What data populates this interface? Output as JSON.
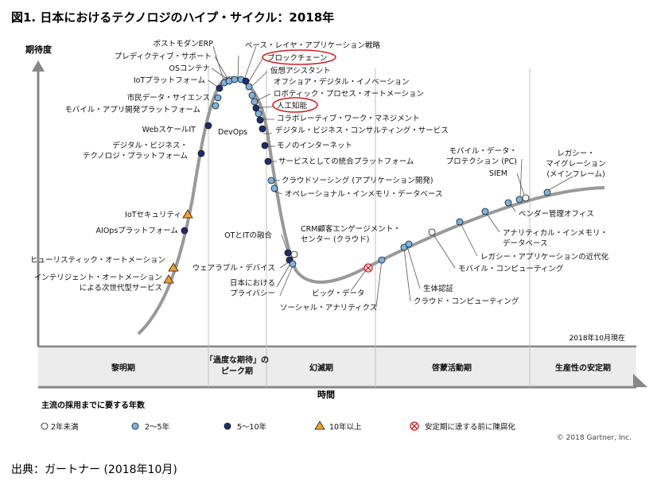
{
  "chart_data": {
    "type": "scatter",
    "title": "図1. 日本におけるテクノロジのハイプ・サイクル：2018年",
    "ylabel": "期待度",
    "xlabel": "時間",
    "as_of": "2018年10月現在",
    "phases": [
      "黎明期",
      "「過度な期待」のピーク期",
      "幻滅期",
      "啓蒙活動期",
      "生産性の安定期"
    ],
    "legend_title": "主流の採用までに要する年数",
    "legend": [
      {
        "key": "lt2",
        "label": "2年未満",
        "color": "#ffffff"
      },
      {
        "key": "2to5",
        "label": "2～5年",
        "color": "#7fb2dd"
      },
      {
        "key": "5to10",
        "label": "5～10年",
        "color": "#1f2d6b"
      },
      {
        "key": "gt10",
        "label": "10年以上",
        "color": "#f0a030"
      },
      {
        "key": "obsolete",
        "label": "安定期に達する前に陳腐化",
        "color": "#d02020"
      }
    ],
    "copyright": "© 2018 Gartner, Inc.",
    "highlight_color": "#d02020",
    "technologies": [
      {
        "name": "ポストモダンERP",
        "years": "2to5"
      },
      {
        "name": "プレディクティブ・サポート",
        "years": "2to5"
      },
      {
        "name": "OSコンテナ",
        "years": "2to5"
      },
      {
        "name": "IoTプラットフォーム",
        "years": "5to10"
      },
      {
        "name": "市民データ・サイエンス",
        "years": "2to5"
      },
      {
        "name": "モバイル・アプリ開発プラットフォーム",
        "years": "2to5"
      },
      {
        "name": "Webスケールアイティー",
        "display": "WebスケールIT",
        "years": "5to10"
      },
      {
        "name": "デジタル・ビジネス・テクノロジ・プラットフォーム",
        "years": "5to10"
      },
      {
        "name": "IoTセキュリティ",
        "years": "gt10"
      },
      {
        "name": "AIOpsプラットフォーム",
        "years": "5to10"
      },
      {
        "name": "ヒューリスティック・オートメーション",
        "years": "gt10"
      },
      {
        "name": "インテリジェント・オートメーションによる次世代型サービス",
        "years": "gt10"
      },
      {
        "name": "ベース・レイヤ・アプリケーション戦略",
        "years": "2to5"
      },
      {
        "name": "ブロックチェーン",
        "years": "5to10",
        "highlight": true
      },
      {
        "name": "仮想アシスタント",
        "years": "2to5"
      },
      {
        "name": "オフショア・デジタル・イノベーション",
        "years": "2to5"
      },
      {
        "name": "ロボティック・プロセス・オートメーション",
        "years": "2to5"
      },
      {
        "name": "人工知能",
        "years": "5to10",
        "highlight": true
      },
      {
        "name": "DevOps",
        "years": "2to5"
      },
      {
        "name": "コラボレーティブ・ワーク・マネジメント",
        "years": "5to10"
      },
      {
        "name": "デジタル・ビジネス・コンサルティング・サービス",
        "years": "5to10"
      },
      {
        "name": "モノのインターネット",
        "years": "5to10"
      },
      {
        "name": "サービスとしての統合プラットフォーム",
        "years": "5to10"
      },
      {
        "name": "クラウドソーシング (アプリケーション開発)",
        "years": "2to5"
      },
      {
        "name": "オペレーショナル・インメモリ・データベース",
        "years": "2to5"
      },
      {
        "name": "OTとITの融合",
        "years": "5to10"
      },
      {
        "name": "ウェアラブル・デバイス",
        "years": "5to10"
      },
      {
        "name": "日本における プライバシー",
        "years": "2to5"
      },
      {
        "name": "CRM顧客エンゲージメント・センター (クラウド)",
        "years": "lt2"
      },
      {
        "name": "ビッグ・データ",
        "years": "obsolete"
      },
      {
        "name": "ソーシャル・アナリティクス",
        "years": "2to5"
      },
      {
        "name": "生体認証",
        "years": "2to5"
      },
      {
        "name": "クラウド・コンピューティング",
        "years": "2to5"
      },
      {
        "name": "モバイル・コンピューティング",
        "years": "lt2"
      },
      {
        "name": "レガシー・アプリケーションの近代化",
        "years": "2to5"
      },
      {
        "name": "アナリティカル・インメモリ・データベース",
        "years": "2to5"
      },
      {
        "name": "ベンダー管理オフィス",
        "years": "2to5"
      },
      {
        "name": "モバイル・データ・プロテクション (PC)",
        "years": "2to5"
      },
      {
        "name": "SIEM",
        "years": "lt2"
      },
      {
        "name": "レガシー・マイグレーション (メインフレーム)",
        "years": "2to5"
      }
    ]
  },
  "labels": {
    "ポストモダンERP": "ポストモダンERP",
    "プレディクティブ・サポート": "プレディクティブ・サポート",
    "OSコンテナ": "OSコンテナ",
    "IoTプラットフォーム": "IoTプラットフォーム",
    "市民データ・サイエンス": "市民データ・サイエンス",
    "モバイル・アプリ開発プラットフォーム": "モバイル・アプリ開発プラットフォーム",
    "webit": "WebスケールIT",
    "dbtp1": "デジタル・ビジネス・",
    "dbtp2": "テクノロジ・プラットフォーム",
    "IoTセキュリティ": "IoTセキュリティ",
    "AIOpsプラットフォーム": "AIOpsプラットフォーム",
    "ヒューリスティック・オートメーション": "ヒューリスティック・オートメーション",
    "ia1": "インテリジェント・オートメーション",
    "ia2": "による次世代型サービス",
    "ベース・レイヤ・アプリケーション戦略": "ベース・レイヤ・アプリケーション戦略",
    "ブロックチェーン": "ブロックチェーン",
    "仮想アシスタント": "仮想アシスタント",
    "オフショア・デジタル・イノベーション": "オフショア・デジタル・イノベーション",
    "ロボティック・プロセス・オートメーション": "ロボティック・プロセス・オートメーション",
    "人工知能": "人工知能",
    "DevOps": "DevOps",
    "コラボレーティブ・ワーク・マネジメント": "コラボレーティブ・ワーク・マネジメント",
    "デジタル・ビジネス・コンサルティング・サービス": "デジタル・ビジネス・コンサルティング・サービス",
    "モノのインターネット": "モノのインターネット",
    "サービスとしての統合プラットフォーム": "サービスとしての統合プラットフォーム",
    "クラウドソーシング (アプリケーション開発)": "クラウドソーシング (アプリケーション開発)",
    "オペレーショナル・インメモリ・データベース": "オペレーショナル・インメモリ・データベース",
    "OTとITの融合": "OTとITの融合",
    "ウェアラブル・デバイス": "ウェアラブル・デバイス",
    "jp1": "日本における",
    "jp2": "プライバシー",
    "crm1": "CRM顧客エンゲージメント・",
    "crm2": "センター (クラウド)",
    "ビッグ・データ": "ビッグ・データ",
    "ソーシャル・アナリティクス": "ソーシャル・アナリティクス",
    "生体認証": "生体認証",
    "クラウド・コンピューティング": "クラウド・コンピューティング",
    "モバイル・コンピューティング": "モバイル・コンピューティング",
    "レガシー・アプリケーションの近代化": "レガシー・アプリケーションの近代化",
    "aim1": "アナリティカル・インメモリ・",
    "aim2": "データベース",
    "ベンダー管理オフィス": "ベンダー管理オフィス",
    "mdp1": "モバイル・データ・",
    "mdp2": "プロテクション (PC)",
    "SIEM": "SIEM",
    "lm1": "レガシー・",
    "lm2": "マイグレーション",
    "lm3": "(メインフレーム)",
    "phase_peak_1": "「過度な期待」の",
    "phase_peak_2": "ピーク期"
  },
  "source": "出典：ガートナー (2018年10月)"
}
